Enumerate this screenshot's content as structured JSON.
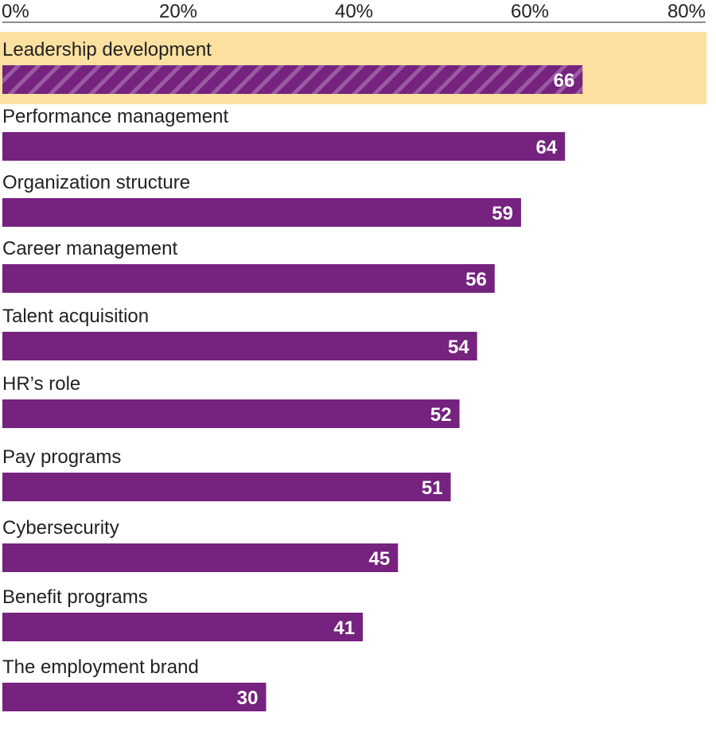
{
  "chart_data": {
    "type": "bar",
    "orientation": "horizontal",
    "title": "",
    "xlabel": "",
    "ylabel": "",
    "xlim": [
      0,
      80
    ],
    "ticks": [
      0,
      20,
      40,
      60,
      80
    ],
    "tick_labels": [
      "0%",
      "20%",
      "40%",
      "60%",
      "80%"
    ],
    "categories": [
      "Leadership development",
      "Performance management",
      "Organization structure",
      "Career management",
      "Talent acquisition",
      "HR’s role",
      "Pay programs",
      "Cybersecurity",
      "Benefit programs",
      "The employment brand"
    ],
    "values": [
      66,
      64,
      59,
      56,
      54,
      52,
      51,
      45,
      41,
      30
    ],
    "highlighted_index": 0,
    "colors": {
      "bar": "#76227F",
      "highlight_background": "#FBE0A0",
      "stripe": "#9A5AA1",
      "axis_line": "#666666",
      "value_text": "#FFFFFF",
      "label_text": "#222222"
    }
  }
}
